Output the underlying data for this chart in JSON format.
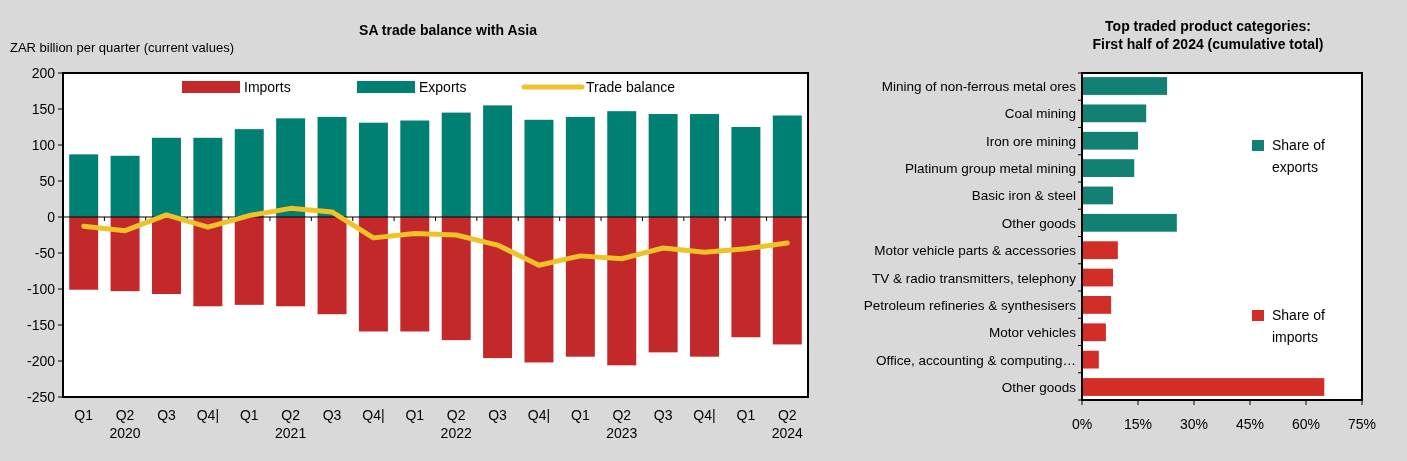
{
  "chart_data": [
    {
      "type": "bar",
      "title": "SA trade balance with Asia",
      "ylabel": "ZAR billion per quarter (current values)",
      "stacked": true,
      "legend": "top",
      "categories": [
        "Q1",
        "Q2\n2020",
        "Q3",
        "Q4|",
        "Q1",
        "Q2\n2021",
        "Q3",
        "Q4|",
        "Q1",
        "Q2\n2022",
        "Q3",
        "Q4|",
        "Q1",
        "Q2\n2023",
        "Q3",
        "Q4|",
        "Q1",
        "Q2\n2024"
      ],
      "ylim": [
        -250,
        200
      ],
      "yticks": [
        -250,
        -200,
        -150,
        -100,
        -50,
        0,
        50,
        100,
        150,
        200
      ],
      "series": [
        {
          "name": "Imports",
          "color": "#c3282a",
          "values": [
            -101,
            -103,
            -107,
            -124,
            -122,
            -124,
            -135,
            -159,
            -159,
            -171,
            -196,
            -202,
            -194,
            -206,
            -188,
            -194,
            -167,
            -177
          ]
        },
        {
          "name": "Exports",
          "color": "#007f73",
          "values": [
            87,
            85,
            110,
            110,
            122,
            137,
            139,
            131,
            134,
            145,
            155,
            135,
            139,
            147,
            143,
            143,
            125,
            141
          ]
        },
        {
          "name": "Trade balance",
          "type": "line",
          "color": "#f0c229",
          "marker": "none",
          "values": [
            -13,
            -19,
            3,
            -14,
            2,
            12,
            7,
            -29,
            -23,
            -25,
            -39,
            -67,
            -54,
            -58,
            -43,
            -49,
            -44,
            -36
          ]
        }
      ]
    },
    {
      "type": "bar",
      "title": "Top traded product categories:\nFirst half of 2024 (cumulative total)",
      "orientation": "horizontal",
      "legend": "right",
      "categories": [
        "Mining of non-ferrous metal ores",
        "Coal mining",
        "Iron ore mining",
        "Platinum group metal mining",
        "Basic iron & steel",
        "Other goods",
        "Motor vehicle parts & accessories",
        "TV & radio transmitters, telephony",
        "Petroleum refineries & synthesisers",
        "Motor vehicles",
        "Office, accounting & computing…",
        "Other goods"
      ],
      "xlim": [
        0,
        75
      ],
      "xticks": [
        {
          "value": 0,
          "label": "0%"
        },
        {
          "value": 15,
          "label": "15%"
        },
        {
          "value": 30,
          "label": "30%"
        },
        {
          "value": 45,
          "label": "45%"
        },
        {
          "value": 60,
          "label": "60%"
        },
        {
          "value": 75,
          "label": "75%"
        }
      ],
      "series": [
        {
          "name": "Share of exports",
          "color": "#128073",
          "values": [
            22.8,
            17.2,
            15,
            14,
            8.3,
            25.4,
            null,
            null,
            null,
            null,
            null,
            null
          ]
        },
        {
          "name": "Share of imports",
          "color": "#d22d27",
          "values": [
            null,
            null,
            null,
            null,
            null,
            null,
            9.6,
            8.3,
            7.8,
            6.4,
            4.5,
            64.9
          ]
        }
      ]
    }
  ]
}
